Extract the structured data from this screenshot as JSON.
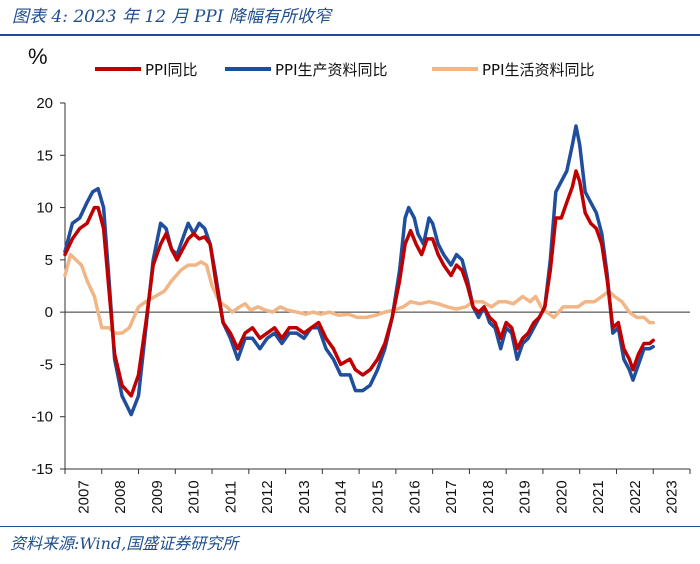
{
  "figure_title": "图表 4:  2023 年 12 月 PPI 降幅有所收窄",
  "source_note": "资料来源:Wind,国盛证券研究所",
  "colors": {
    "ppi": "#c00000",
    "producer": "#1f4e9c",
    "consumer": "#f2b585",
    "brand": "#1f4e8c"
  },
  "chart_data": {
    "type": "line",
    "title": "2023 年 12 月 PPI 降幅有所收窄",
    "ylabel": "%",
    "xlabel": "",
    "ylim": [
      -15,
      20
    ],
    "yticks": [
      20,
      15,
      10,
      5,
      0,
      -5,
      -10,
      -15
    ],
    "xlim": [
      2007,
      2024
    ],
    "xtick_labels": [
      "2007",
      "2008",
      "2009",
      "2010",
      "2011",
      "2012",
      "2013",
      "2014",
      "2015",
      "2016",
      "2017",
      "2018",
      "2019",
      "2020",
      "2021",
      "2022",
      "2023"
    ],
    "legend_position": "top",
    "series": [
      {
        "name": "PPI同比",
        "color": "#c00000",
        "points": [
          [
            2007.0,
            5.5
          ],
          [
            2007.2,
            7.0
          ],
          [
            2007.4,
            8.0
          ],
          [
            2007.6,
            8.5
          ],
          [
            2007.8,
            10.0
          ],
          [
            2007.9,
            10.0
          ],
          [
            2008.05,
            8.0
          ],
          [
            2008.2,
            2.0
          ],
          [
            2008.35,
            -4.0
          ],
          [
            2008.55,
            -7.0
          ],
          [
            2008.8,
            -8.0
          ],
          [
            2009.0,
            -6.0
          ],
          [
            2009.2,
            -1.0
          ],
          [
            2009.4,
            4.5
          ],
          [
            2009.6,
            6.5
          ],
          [
            2009.75,
            7.5
          ],
          [
            2009.9,
            6.0
          ],
          [
            2010.05,
            5.0
          ],
          [
            2010.2,
            6.0
          ],
          [
            2010.35,
            7.0
          ],
          [
            2010.5,
            7.5
          ],
          [
            2010.65,
            7.0
          ],
          [
            2010.8,
            7.2
          ],
          [
            2010.95,
            6.5
          ],
          [
            2011.1,
            3.0
          ],
          [
            2011.3,
            -1.0
          ],
          [
            2011.5,
            -2.0
          ],
          [
            2011.7,
            -3.5
          ],
          [
            2011.9,
            -2.0
          ],
          [
            2012.1,
            -1.5
          ],
          [
            2012.3,
            -2.5
          ],
          [
            2012.5,
            -2.0
          ],
          [
            2012.7,
            -1.5
          ],
          [
            2012.9,
            -2.5
          ],
          [
            2013.1,
            -1.5
          ],
          [
            2013.3,
            -1.5
          ],
          [
            2013.5,
            -2.0
          ],
          [
            2013.7,
            -1.5
          ],
          [
            2013.9,
            -1.0
          ],
          [
            2014.1,
            -2.5
          ],
          [
            2014.3,
            -3.5
          ],
          [
            2014.5,
            -5.0
          ],
          [
            2014.75,
            -4.5
          ],
          [
            2014.9,
            -5.5
          ],
          [
            2015.1,
            -6.0
          ],
          [
            2015.3,
            -5.5
          ],
          [
            2015.5,
            -4.5
          ],
          [
            2015.7,
            -3.0
          ],
          [
            2015.9,
            -0.5
          ],
          [
            2016.1,
            3.0
          ],
          [
            2016.25,
            6.5
          ],
          [
            2016.4,
            7.8
          ],
          [
            2016.55,
            6.5
          ],
          [
            2016.7,
            5.5
          ],
          [
            2016.85,
            7.0
          ],
          [
            2017.0,
            7.0
          ],
          [
            2017.15,
            5.5
          ],
          [
            2017.3,
            4.5
          ],
          [
            2017.5,
            3.5
          ],
          [
            2017.65,
            4.5
          ],
          [
            2017.8,
            4.0
          ],
          [
            2017.95,
            2.5
          ],
          [
            2018.1,
            0.5
          ],
          [
            2018.25,
            0.0
          ],
          [
            2018.4,
            0.5
          ],
          [
            2018.55,
            -0.5
          ],
          [
            2018.7,
            -1.0
          ],
          [
            2018.85,
            -2.5
          ],
          [
            2019.0,
            -1.0
          ],
          [
            2019.15,
            -1.5
          ],
          [
            2019.3,
            -3.5
          ],
          [
            2019.45,
            -2.5
          ],
          [
            2019.6,
            -2.0
          ],
          [
            2019.75,
            -1.0
          ],
          [
            2019.9,
            -0.5
          ],
          [
            2020.05,
            0.5
          ],
          [
            2020.2,
            4.0
          ],
          [
            2020.35,
            9.0
          ],
          [
            2020.5,
            9.0
          ],
          [
            2020.65,
            10.5
          ],
          [
            2020.8,
            12.0
          ],
          [
            2020.9,
            13.5
          ],
          [
            2021.0,
            12.5
          ],
          [
            2021.15,
            9.5
          ],
          [
            2021.3,
            8.5
          ],
          [
            2021.45,
            8.0
          ],
          [
            2021.6,
            6.5
          ],
          [
            2021.75,
            3.0
          ],
          [
            2021.9,
            -1.5
          ],
          [
            2022.05,
            -1.0
          ],
          [
            2022.2,
            -3.5
          ],
          [
            2022.35,
            -4.5
          ],
          [
            2022.45,
            -5.5
          ],
          [
            2022.6,
            -4.0
          ],
          [
            2022.75,
            -3.0
          ],
          [
            2022.9,
            -3.0
          ],
          [
            2023.0,
            -2.7
          ]
        ]
      },
      {
        "name": "PPI生产资料同比",
        "color": "#1f4e9c",
        "points": [
          [
            2007.0,
            5.8
          ],
          [
            2007.2,
            8.5
          ],
          [
            2007.4,
            9.0
          ],
          [
            2007.6,
            10.5
          ],
          [
            2007.75,
            11.5
          ],
          [
            2007.9,
            11.8
          ],
          [
            2008.05,
            10.0
          ],
          [
            2008.2,
            3.0
          ],
          [
            2008.35,
            -4.5
          ],
          [
            2008.55,
            -8.0
          ],
          [
            2008.8,
            -9.8
          ],
          [
            2009.0,
            -8.0
          ],
          [
            2009.2,
            -1.5
          ],
          [
            2009.4,
            5.0
          ],
          [
            2009.6,
            8.5
          ],
          [
            2009.75,
            8.0
          ],
          [
            2009.9,
            6.0
          ],
          [
            2010.05,
            5.5
          ],
          [
            2010.2,
            7.0
          ],
          [
            2010.35,
            8.5
          ],
          [
            2010.5,
            7.5
          ],
          [
            2010.65,
            8.5
          ],
          [
            2010.8,
            8.0
          ],
          [
            2010.95,
            6.5
          ],
          [
            2011.1,
            3.5
          ],
          [
            2011.3,
            -1.0
          ],
          [
            2011.5,
            -2.5
          ],
          [
            2011.7,
            -4.5
          ],
          [
            2011.9,
            -2.5
          ],
          [
            2012.1,
            -2.5
          ],
          [
            2012.3,
            -3.5
          ],
          [
            2012.5,
            -2.5
          ],
          [
            2012.7,
            -2.0
          ],
          [
            2012.9,
            -3.0
          ],
          [
            2013.1,
            -2.0
          ],
          [
            2013.3,
            -2.0
          ],
          [
            2013.5,
            -2.5
          ],
          [
            2013.7,
            -1.5
          ],
          [
            2013.9,
            -1.5
          ],
          [
            2014.1,
            -3.5
          ],
          [
            2014.3,
            -4.5
          ],
          [
            2014.5,
            -6.0
          ],
          [
            2014.75,
            -6.0
          ],
          [
            2014.9,
            -7.5
          ],
          [
            2015.1,
            -7.5
          ],
          [
            2015.3,
            -7.0
          ],
          [
            2015.5,
            -5.5
          ],
          [
            2015.7,
            -3.5
          ],
          [
            2015.9,
            -0.5
          ],
          [
            2016.1,
            4.0
          ],
          [
            2016.25,
            9.0
          ],
          [
            2016.35,
            10.0
          ],
          [
            2016.5,
            9.0
          ],
          [
            2016.6,
            7.5
          ],
          [
            2016.75,
            6.5
          ],
          [
            2016.9,
            9.0
          ],
          [
            2017.0,
            8.5
          ],
          [
            2017.15,
            6.5
          ],
          [
            2017.3,
            5.5
          ],
          [
            2017.5,
            4.5
          ],
          [
            2017.65,
            5.5
          ],
          [
            2017.8,
            5.0
          ],
          [
            2017.95,
            3.0
          ],
          [
            2018.1,
            0.5
          ],
          [
            2018.25,
            -0.5
          ],
          [
            2018.4,
            0.5
          ],
          [
            2018.55,
            -1.0
          ],
          [
            2018.7,
            -1.5
          ],
          [
            2018.85,
            -3.5
          ],
          [
            2019.0,
            -1.5
          ],
          [
            2019.15,
            -2.0
          ],
          [
            2019.3,
            -4.5
          ],
          [
            2019.45,
            -3.0
          ],
          [
            2019.6,
            -2.5
          ],
          [
            2019.75,
            -1.5
          ],
          [
            2019.9,
            -0.5
          ],
          [
            2020.05,
            0.5
          ],
          [
            2020.2,
            5.0
          ],
          [
            2020.35,
            11.5
          ],
          [
            2020.5,
            12.5
          ],
          [
            2020.65,
            13.5
          ],
          [
            2020.8,
            16.0
          ],
          [
            2020.9,
            17.8
          ],
          [
            2021.0,
            16.0
          ],
          [
            2021.15,
            11.5
          ],
          [
            2021.3,
            10.5
          ],
          [
            2021.45,
            9.5
          ],
          [
            2021.6,
            7.5
          ],
          [
            2021.75,
            3.5
          ],
          [
            2021.9,
            -2.0
          ],
          [
            2022.05,
            -1.5
          ],
          [
            2022.2,
            -4.5
          ],
          [
            2022.35,
            -5.5
          ],
          [
            2022.45,
            -6.5
          ],
          [
            2022.6,
            -5.0
          ],
          [
            2022.75,
            -3.5
          ],
          [
            2022.9,
            -3.5
          ],
          [
            2023.0,
            -3.3
          ]
        ]
      },
      {
        "name": "PPI生活资料同比",
        "color": "#f2b585",
        "points": [
          [
            2007.0,
            3.5
          ],
          [
            2007.15,
            5.5
          ],
          [
            2007.3,
            5.0
          ],
          [
            2007.45,
            4.5
          ],
          [
            2007.6,
            3.0
          ],
          [
            2007.8,
            1.5
          ],
          [
            2008.0,
            -1.5
          ],
          [
            2008.2,
            -1.5
          ],
          [
            2008.35,
            -2.0
          ],
          [
            2008.55,
            -2.0
          ],
          [
            2008.75,
            -1.5
          ],
          [
            2009.0,
            0.5
          ],
          [
            2009.2,
            1.0
          ],
          [
            2009.45,
            1.5
          ],
          [
            2009.7,
            2.0
          ],
          [
            2009.9,
            3.0
          ],
          [
            2010.15,
            4.0
          ],
          [
            2010.35,
            4.5
          ],
          [
            2010.55,
            4.5
          ],
          [
            2010.7,
            4.8
          ],
          [
            2010.85,
            4.5
          ],
          [
            2011.0,
            2.5
          ],
          [
            2011.2,
            1.0
          ],
          [
            2011.4,
            0.5
          ],
          [
            2011.55,
            0.0
          ],
          [
            2011.75,
            0.5
          ],
          [
            2011.9,
            0.8
          ],
          [
            2012.05,
            0.2
          ],
          [
            2012.25,
            0.5
          ],
          [
            2012.45,
            0.2
          ],
          [
            2012.65,
            0.0
          ],
          [
            2012.85,
            0.5
          ],
          [
            2013.05,
            0.2
          ],
          [
            2013.3,
            0.0
          ],
          [
            2013.55,
            -0.2
          ],
          [
            2013.75,
            0.0
          ],
          [
            2013.95,
            -0.2
          ],
          [
            2014.2,
            0.0
          ],
          [
            2014.45,
            -0.3
          ],
          [
            2014.7,
            -0.2
          ],
          [
            2014.95,
            -0.5
          ],
          [
            2015.2,
            -0.5
          ],
          [
            2015.45,
            -0.3
          ],
          [
            2015.7,
            0.0
          ],
          [
            2015.95,
            0.2
          ],
          [
            2016.2,
            0.5
          ],
          [
            2016.4,
            1.0
          ],
          [
            2016.65,
            0.8
          ],
          [
            2016.9,
            1.0
          ],
          [
            2017.15,
            0.8
          ],
          [
            2017.4,
            0.5
          ],
          [
            2017.65,
            0.3
          ],
          [
            2017.9,
            0.5
          ],
          [
            2018.1,
            1.0
          ],
          [
            2018.35,
            1.0
          ],
          [
            2018.6,
            0.5
          ],
          [
            2018.8,
            1.0
          ],
          [
            2019.0,
            1.0
          ],
          [
            2019.2,
            0.8
          ],
          [
            2019.45,
            1.5
          ],
          [
            2019.65,
            1.0
          ],
          [
            2019.8,
            1.5
          ],
          [
            2019.95,
            0.5
          ],
          [
            2020.1,
            0.0
          ],
          [
            2020.3,
            -0.5
          ],
          [
            2020.55,
            0.5
          ],
          [
            2020.75,
            0.5
          ],
          [
            2020.95,
            0.5
          ],
          [
            2021.15,
            1.0
          ],
          [
            2021.4,
            1.0
          ],
          [
            2021.6,
            1.5
          ],
          [
            2021.8,
            2.0
          ],
          [
            2021.95,
            1.5
          ],
          [
            2022.15,
            1.0
          ],
          [
            2022.35,
            0.0
          ],
          [
            2022.55,
            -0.5
          ],
          [
            2022.75,
            -0.5
          ],
          [
            2022.9,
            -1.0
          ],
          [
            2023.0,
            -1.0
          ]
        ]
      }
    ]
  }
}
